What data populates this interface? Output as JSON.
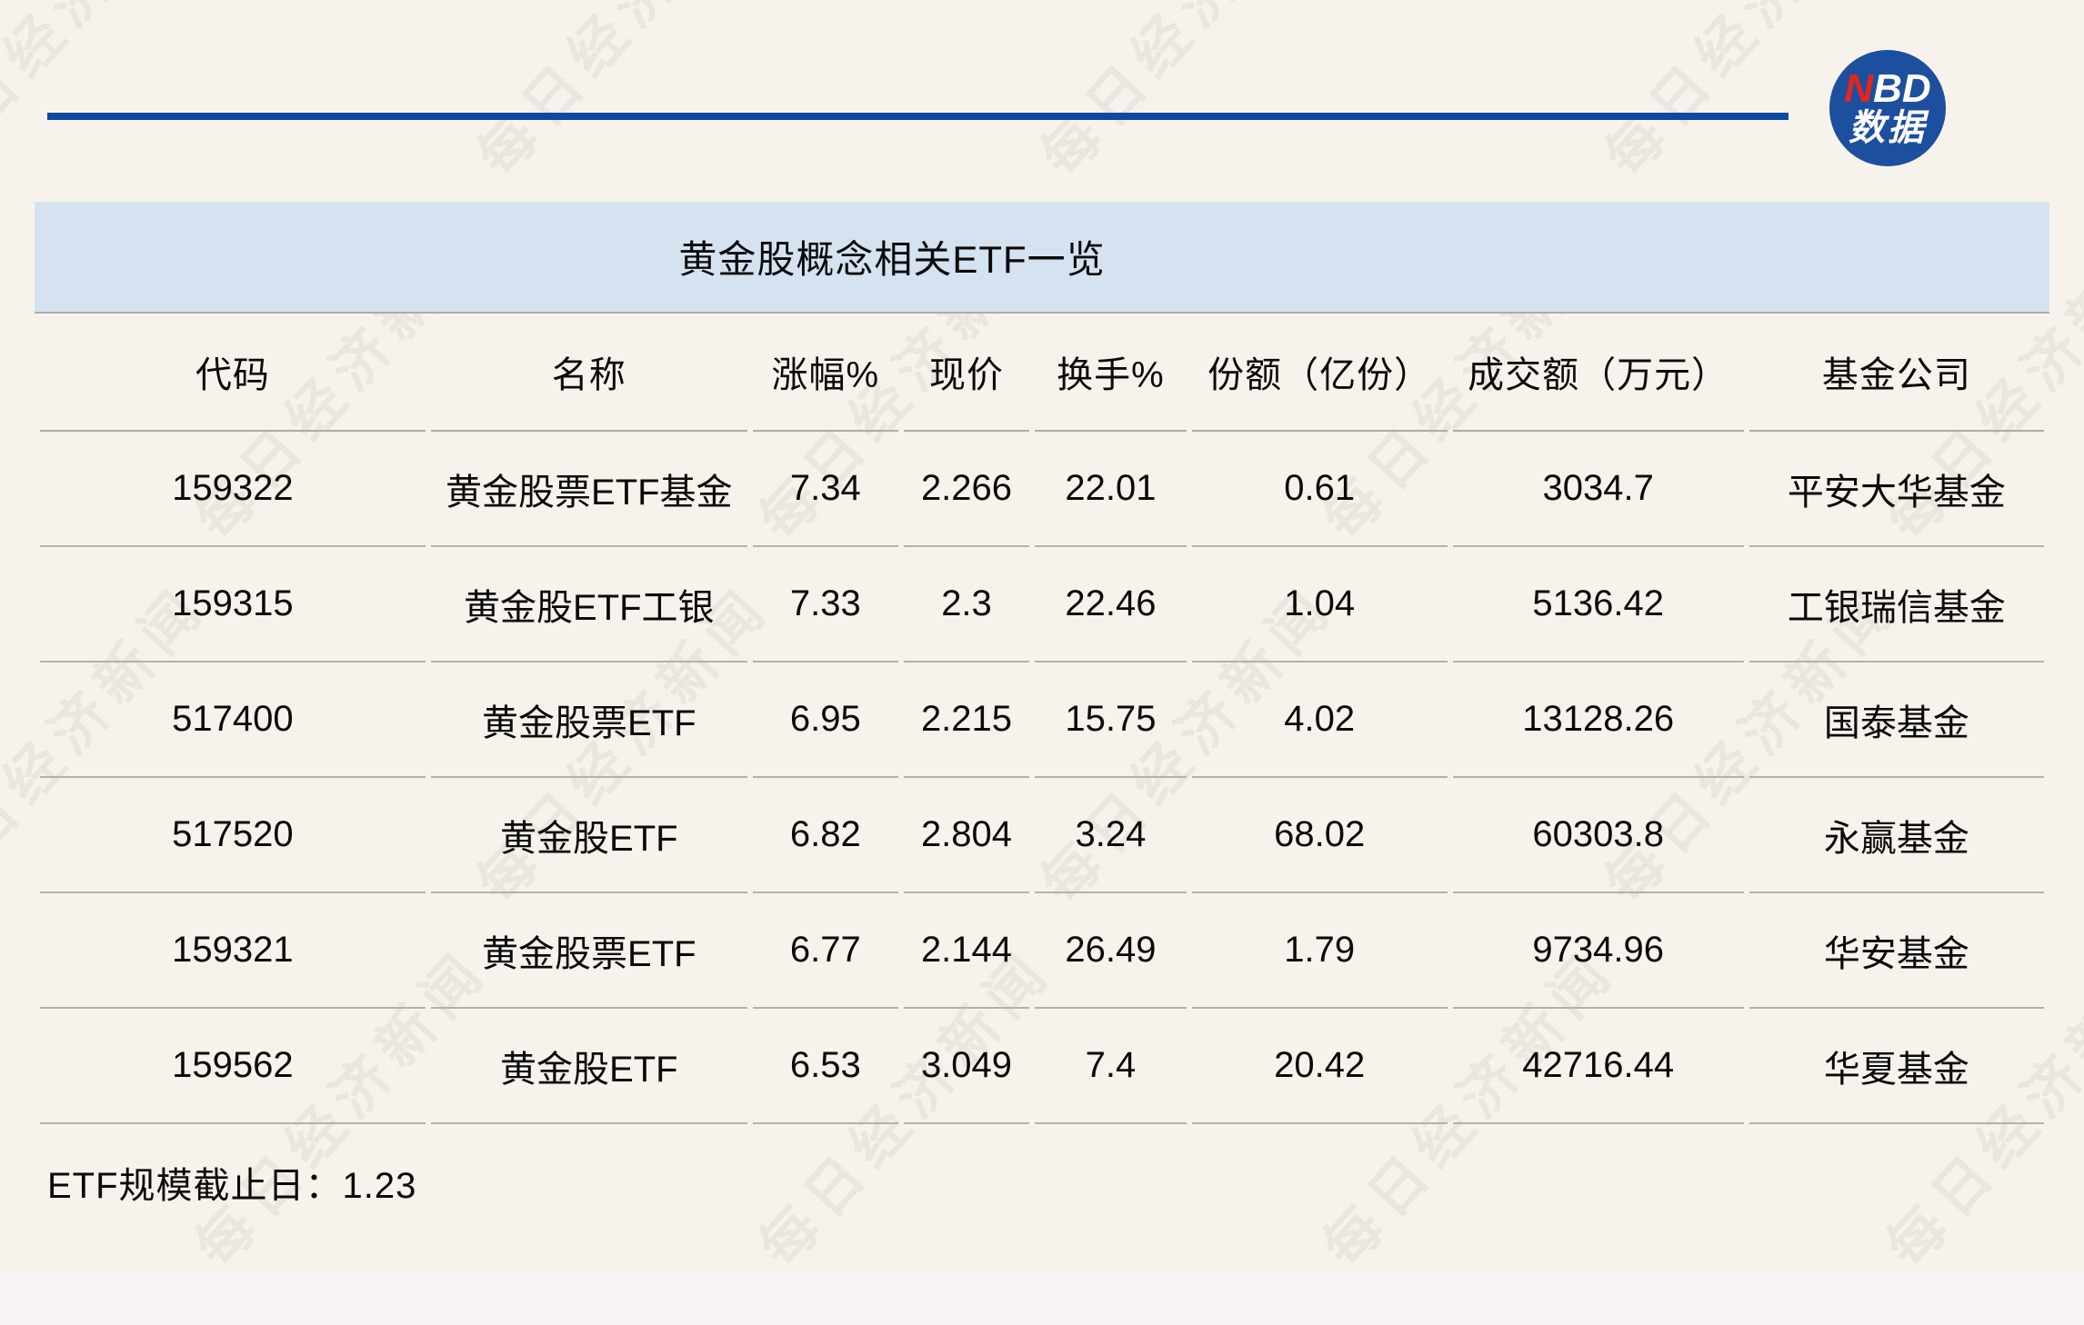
{
  "logo": {
    "n": "N",
    "bd": "BD",
    "sub": "数据"
  },
  "watermark_text": "每日经济新闻",
  "chart_data": {
    "type": "table",
    "title": "黄金股概念相关ETF一览",
    "columns": [
      "代码",
      "名称",
      "涨幅%",
      "现价",
      "换手%",
      "份额（亿份）",
      "成交额（万元）",
      "基金公司"
    ],
    "rows": [
      [
        "159322",
        "黄金股票ETF基金",
        "7.34",
        "2.266",
        "22.01",
        "0.61",
        "3034.7",
        "平安大华基金"
      ],
      [
        "159315",
        "黄金股ETF工银",
        "7.33",
        "2.3",
        "22.46",
        "1.04",
        "5136.42",
        "工银瑞信基金"
      ],
      [
        "517400",
        "黄金股票ETF",
        "6.95",
        "2.215",
        "15.75",
        "4.02",
        "13128.26",
        "国泰基金"
      ],
      [
        "517520",
        "黄金股ETF",
        "6.82",
        "2.804",
        "3.24",
        "68.02",
        "60303.8",
        "永赢基金"
      ],
      [
        "159321",
        "黄金股票ETF",
        "6.77",
        "2.144",
        "26.49",
        "1.79",
        "9734.96",
        "华安基金"
      ],
      [
        "159562",
        "黄金股ETF",
        "6.53",
        "3.049",
        "7.4",
        "20.42",
        "42716.44",
        "华夏基金"
      ]
    ],
    "footnote": "ETF规模截止日：1.23"
  },
  "colors": {
    "background": "#f7f3ec",
    "rule_blue": "#0b4a9e",
    "logo_blue": "#1d4f9f",
    "logo_red": "#e3261d",
    "band_blue": "#d5e3f1",
    "divider_gray": "#b3b1ae",
    "text": "#0a0a0a"
  }
}
